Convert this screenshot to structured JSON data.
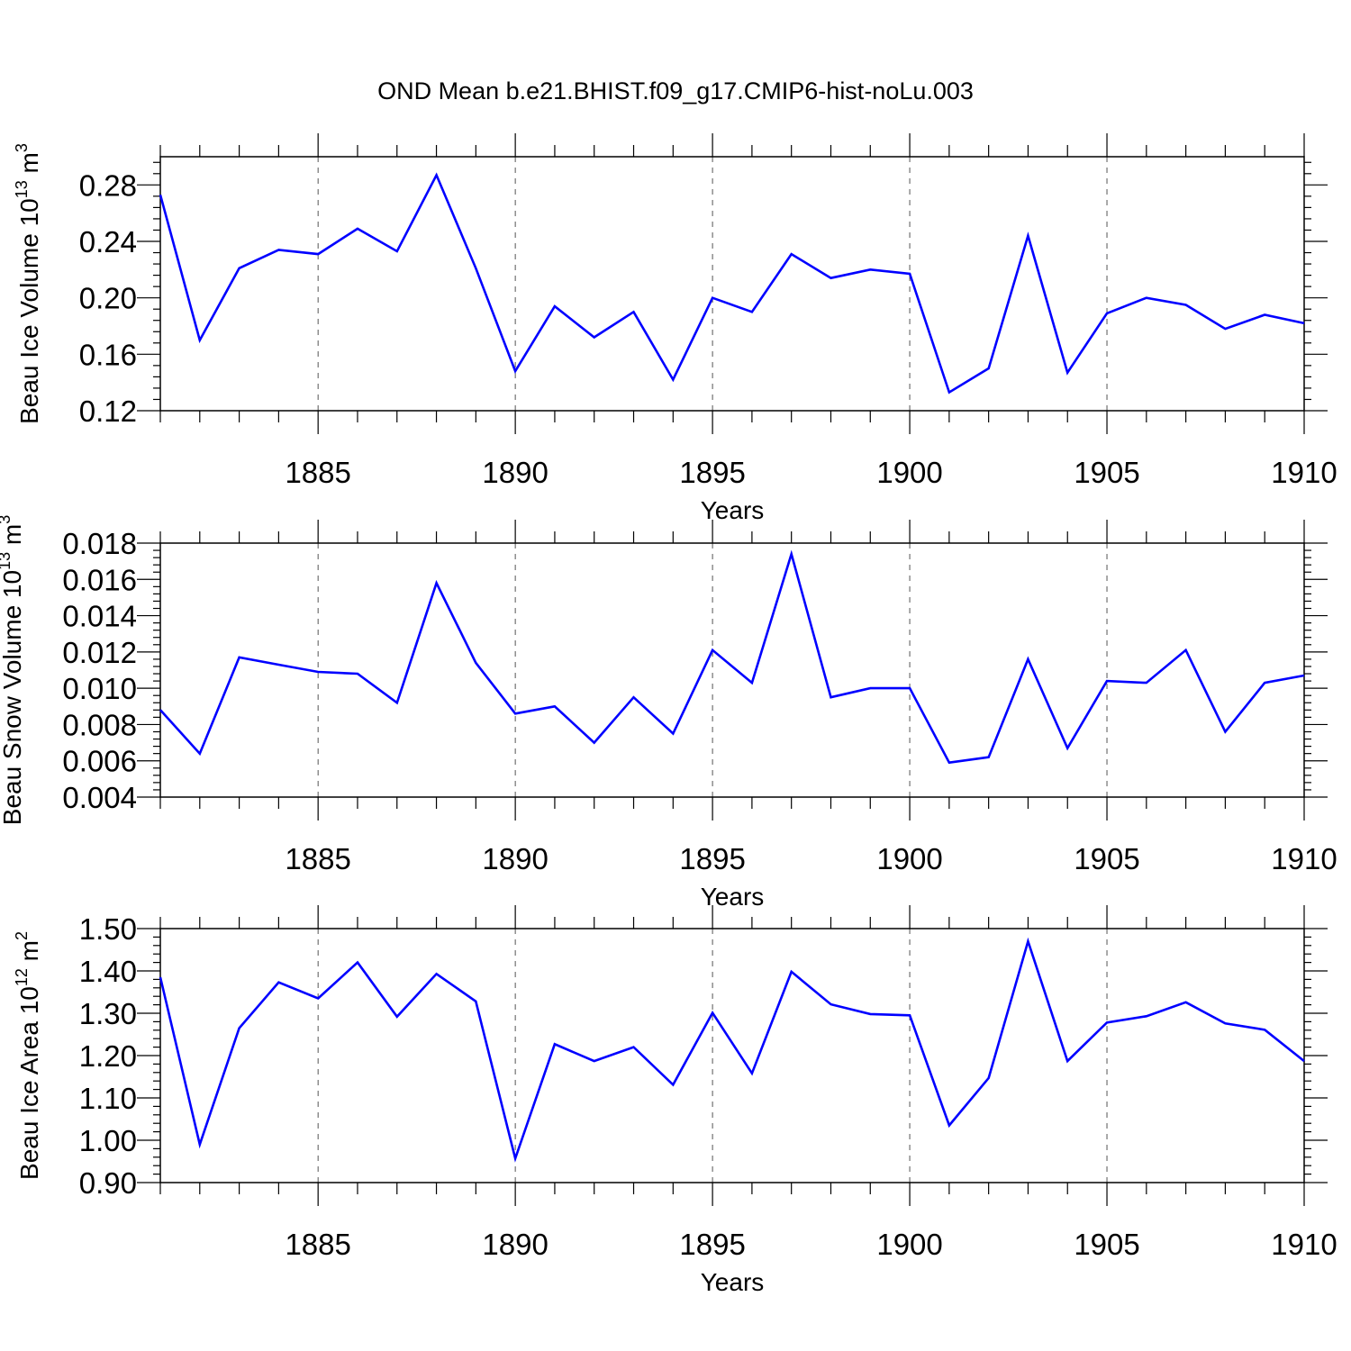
{
  "figure_title": "OND Mean b.e21.BHIST.f09_g17.CMIP6-hist-noLu.003",
  "colors": {
    "line": "#0000ff",
    "axes": "#000000",
    "grid": "#555555"
  },
  "chart_data": [
    {
      "type": "line",
      "ylabel": "Beau Ice Volume 10",
      "ylabel_exp": "13",
      "ylabel_unit": "m",
      "ylabel_unit_exp": "3",
      "xlabel": "Years",
      "xlim": [
        1881,
        1910
      ],
      "ylim": [
        0.12,
        0.3
      ],
      "yticks": [
        0.12,
        0.16,
        0.2,
        0.24,
        0.28
      ],
      "ytick_labels": [
        "0.12",
        "0.16",
        "0.20",
        "0.24",
        "0.28"
      ],
      "xticks": [
        1885,
        1890,
        1895,
        1900,
        1905,
        1910
      ],
      "xtick_labels": [
        "1885",
        "1890",
        "1895",
        "1900",
        "1905",
        "1910"
      ],
      "grid": "vertical dashed at labeled years",
      "x": [
        1881,
        1882,
        1883,
        1884,
        1885,
        1886,
        1887,
        1888,
        1889,
        1890,
        1891,
        1892,
        1893,
        1894,
        1895,
        1896,
        1897,
        1898,
        1899,
        1900,
        1901,
        1902,
        1903,
        1904,
        1905,
        1906,
        1907,
        1908,
        1909,
        1910
      ],
      "values": [
        0.273,
        0.17,
        0.221,
        0.234,
        0.231,
        0.249,
        0.233,
        0.287,
        0.221,
        0.148,
        0.194,
        0.172,
        0.19,
        0.142,
        0.2,
        0.19,
        0.231,
        0.214,
        0.22,
        0.217,
        0.133,
        0.15,
        0.244,
        0.147,
        0.189,
        0.2,
        0.195,
        0.178,
        0.188,
        0.182
      ]
    },
    {
      "type": "line",
      "ylabel": "Beau Snow Volume 10",
      "ylabel_exp": "13",
      "ylabel_unit": "m",
      "ylabel_unit_exp": "3",
      "xlabel": "Years",
      "xlim": [
        1881,
        1910
      ],
      "ylim": [
        0.004,
        0.018
      ],
      "yticks": [
        0.004,
        0.006,
        0.008,
        0.01,
        0.012,
        0.014,
        0.016,
        0.018
      ],
      "ytick_labels": [
        "0.004",
        "0.006",
        "0.008",
        "0.010",
        "0.012",
        "0.014",
        "0.016",
        "0.018"
      ],
      "xticks": [
        1885,
        1890,
        1895,
        1900,
        1905,
        1910
      ],
      "xtick_labels": [
        "1885",
        "1890",
        "1895",
        "1900",
        "1905",
        "1910"
      ],
      "grid": "vertical dashed at labeled years",
      "x": [
        1881,
        1882,
        1883,
        1884,
        1885,
        1886,
        1887,
        1888,
        1889,
        1890,
        1891,
        1892,
        1893,
        1894,
        1895,
        1896,
        1897,
        1898,
        1899,
        1900,
        1901,
        1902,
        1903,
        1904,
        1905,
        1906,
        1907,
        1908,
        1909,
        1910
      ],
      "values": [
        0.0088,
        0.0064,
        0.0117,
        0.0113,
        0.0109,
        0.0108,
        0.0092,
        0.0158,
        0.0114,
        0.0086,
        0.009,
        0.007,
        0.0095,
        0.0075,
        0.0121,
        0.0103,
        0.0174,
        0.0095,
        0.01,
        0.01,
        0.0059,
        0.0062,
        0.0116,
        0.0067,
        0.0104,
        0.0103,
        0.0121,
        0.0076,
        0.0103,
        0.0107
      ]
    },
    {
      "type": "line",
      "ylabel": "Beau Ice Area 10",
      "ylabel_exp": "12",
      "ylabel_unit": "m",
      "ylabel_unit_exp": "2",
      "xlabel": "Years",
      "xlim": [
        1881,
        1910
      ],
      "ylim": [
        0.9,
        1.5
      ],
      "yticks": [
        0.9,
        1.0,
        1.1,
        1.2,
        1.3,
        1.4,
        1.5
      ],
      "ytick_labels": [
        "0.90",
        "1.00",
        "1.10",
        "1.20",
        "1.30",
        "1.40",
        "1.50"
      ],
      "xticks": [
        1885,
        1890,
        1895,
        1900,
        1905,
        1910
      ],
      "xtick_labels": [
        "1885",
        "1890",
        "1895",
        "1900",
        "1905",
        "1910"
      ],
      "grid": "vertical dashed at labeled years",
      "x": [
        1881,
        1882,
        1883,
        1884,
        1885,
        1886,
        1887,
        1888,
        1889,
        1890,
        1891,
        1892,
        1893,
        1894,
        1895,
        1896,
        1897,
        1898,
        1899,
        1900,
        1901,
        1902,
        1903,
        1904,
        1905,
        1906,
        1907,
        1908,
        1909,
        1910
      ],
      "values": [
        1.385,
        0.99,
        1.265,
        1.373,
        1.335,
        1.42,
        1.292,
        1.393,
        1.328,
        0.957,
        1.227,
        1.187,
        1.22,
        1.131,
        1.301,
        1.158,
        1.398,
        1.321,
        1.298,
        1.295,
        1.035,
        1.147,
        1.47,
        1.187,
        1.278,
        1.293,
        1.326,
        1.276,
        1.261,
        1.187
      ]
    }
  ]
}
